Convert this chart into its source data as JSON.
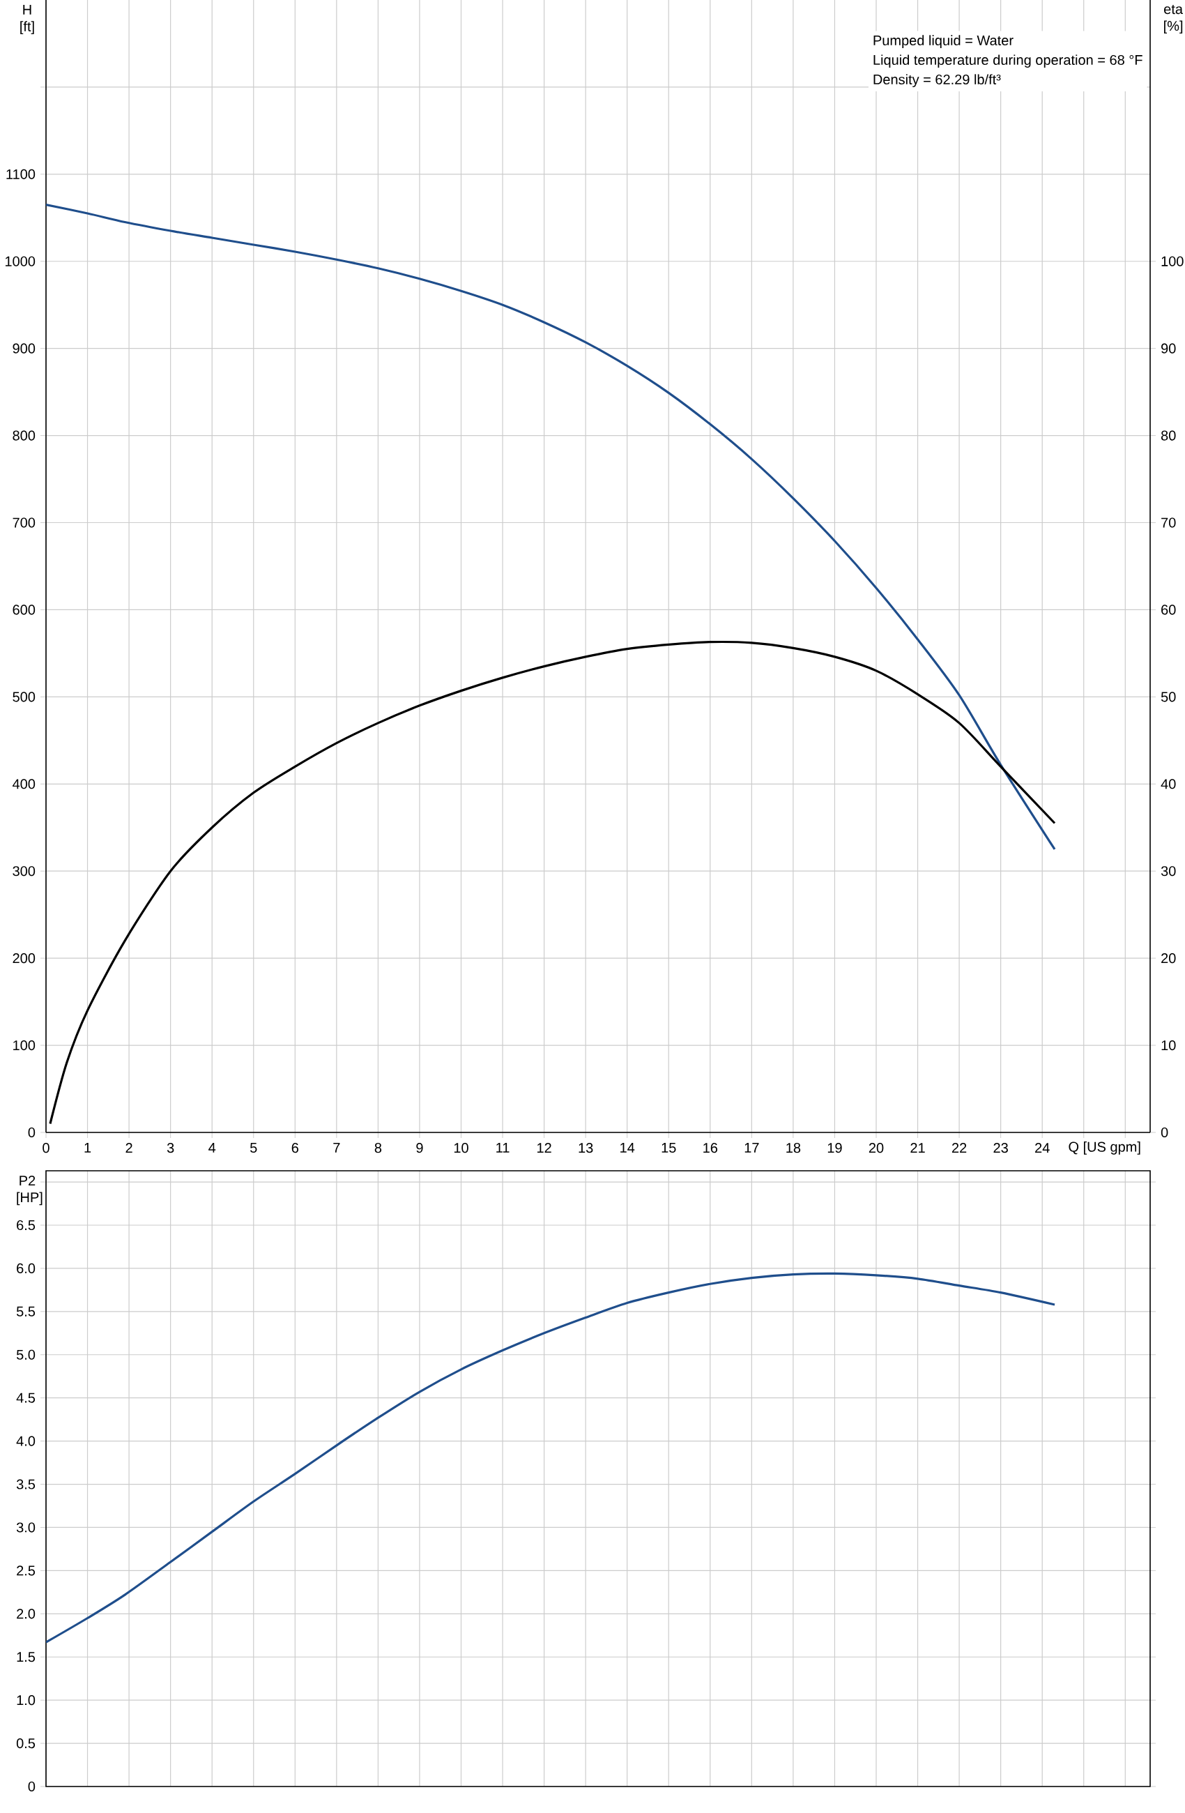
{
  "chart_data": [
    {
      "type": "line",
      "ylabel": "H [ft]",
      "y2label": "eta [%]",
      "xlabel": "Q [US gpm]",
      "annotations": [
        "Pumped liquid = Water",
        "Liquid temperature during operation = 68 °F",
        "Density = 62.29 lb/ft³"
      ],
      "xlim": [
        0,
        26.6
      ],
      "xticks": [
        0,
        1,
        2,
        3,
        4,
        5,
        6,
        7,
        8,
        9,
        10,
        11,
        12,
        13,
        14,
        15,
        16,
        17,
        18,
        19,
        20,
        21,
        22,
        23,
        24,
        {
          "value": 25,
          "label": null
        },
        {
          "value": 26,
          "label": null
        }
      ],
      "ylim": [
        0,
        1300
      ],
      "yticks": [
        0,
        100,
        200,
        300,
        400,
        500,
        600,
        700,
        800,
        900,
        1000,
        1100,
        {
          "value": 1200,
          "label": null
        }
      ],
      "y2lim": [
        0,
        130
      ],
      "y2ticks": [
        0,
        10,
        20,
        30,
        40,
        50,
        60,
        70,
        80,
        90,
        100
      ],
      "grid": true,
      "series": [
        {
          "color": "#1f4e8c",
          "x": [
            0,
            1,
            1.9,
            3,
            4,
            5,
            6,
            7,
            8,
            9,
            10,
            11,
            12,
            13,
            14,
            15,
            16,
            17,
            18,
            19,
            20,
            21,
            22,
            23,
            24.3
          ],
          "values": [
            1065,
            1055,
            1045,
            1035,
            1027,
            1019,
            1011,
            1002,
            992,
            980,
            966,
            950,
            930,
            907,
            880,
            849,
            813,
            773,
            728,
            679,
            625,
            566,
            502,
            422,
            325
          ]
        },
        {
          "color": "#000000",
          "axis": "y2",
          "x": [
            0.1,
            0.5,
            1,
            1.9,
            3,
            4,
            5,
            6,
            7,
            8,
            9,
            10,
            11,
            12,
            13,
            14,
            15,
            16,
            17,
            18,
            19,
            20,
            21,
            22,
            23,
            24.3
          ],
          "values": [
            1,
            8,
            14,
            22,
            30,
            35,
            39,
            42,
            44.7,
            47,
            49,
            50.7,
            52.2,
            53.5,
            54.6,
            55.5,
            56,
            56.3,
            56.2,
            55.6,
            54.6,
            53,
            50.3,
            47,
            42,
            35.5
          ]
        }
      ]
    },
    {
      "type": "line",
      "ylabel": "P2 [HP]",
      "tick_labels": "y",
      "grid": true,
      "xlim": [
        0,
        26.6
      ],
      "xticks": [
        {
          "value": 0,
          "label": null
        },
        {
          "value": 1,
          "label": null
        },
        {
          "value": 2,
          "label": null
        },
        {
          "value": 3,
          "label": null
        },
        {
          "value": 4,
          "label": null
        },
        {
          "value": 5,
          "label": null
        },
        {
          "value": 6,
          "label": null
        },
        {
          "value": 7,
          "label": null
        },
        {
          "value": 8,
          "label": null
        },
        {
          "value": 9,
          "label": null
        },
        {
          "value": 10,
          "label": null
        },
        {
          "value": 11,
          "label": null
        },
        {
          "value": 12,
          "label": null
        },
        {
          "value": 13,
          "label": null
        },
        {
          "value": 14,
          "label": null
        },
        {
          "value": 15,
          "label": null
        },
        {
          "value": 16,
          "label": null
        },
        {
          "value": 17,
          "label": null
        },
        {
          "value": 18,
          "label": null
        },
        {
          "value": 19,
          "label": null
        },
        {
          "value": 20,
          "label": null
        },
        {
          "value": 21,
          "label": null
        },
        {
          "value": 22,
          "label": null
        },
        {
          "value": 23,
          "label": null
        },
        {
          "value": 24,
          "label": null
        },
        {
          "value": 25,
          "label": null
        },
        {
          "value": 26,
          "label": null
        }
      ],
      "ylim": [
        0,
        7.13
      ],
      "yticks": [
        0,
        0.5,
        {
          "value": 1,
          "label": "1.0"
        },
        1.5,
        {
          "value": 2,
          "label": "2.0"
        },
        2.5,
        {
          "value": 3,
          "label": "3.0"
        },
        3.5,
        {
          "value": 4,
          "label": "4.0"
        },
        4.5,
        {
          "value": 5,
          "label": "5.0"
        },
        5.5,
        {
          "value": 6,
          "label": "6.0"
        },
        6.5,
        {
          "value": 7,
          "label": null
        }
      ],
      "series": [
        {
          "color": "#1f4e8c",
          "x": [
            0,
            1,
            1.9,
            3,
            4,
            5,
            6,
            7,
            8,
            9,
            10,
            11,
            12,
            13,
            14,
            15,
            16,
            17,
            18,
            19,
            20,
            21,
            22,
            23,
            24.3
          ],
          "values": [
            1.67,
            1.95,
            2.22,
            2.6,
            2.95,
            3.3,
            3.62,
            3.95,
            4.27,
            4.57,
            4.83,
            5.05,
            5.25,
            5.43,
            5.6,
            5.72,
            5.82,
            5.89,
            5.93,
            5.94,
            5.92,
            5.88,
            5.8,
            5.72,
            5.58
          ]
        }
      ]
    }
  ]
}
